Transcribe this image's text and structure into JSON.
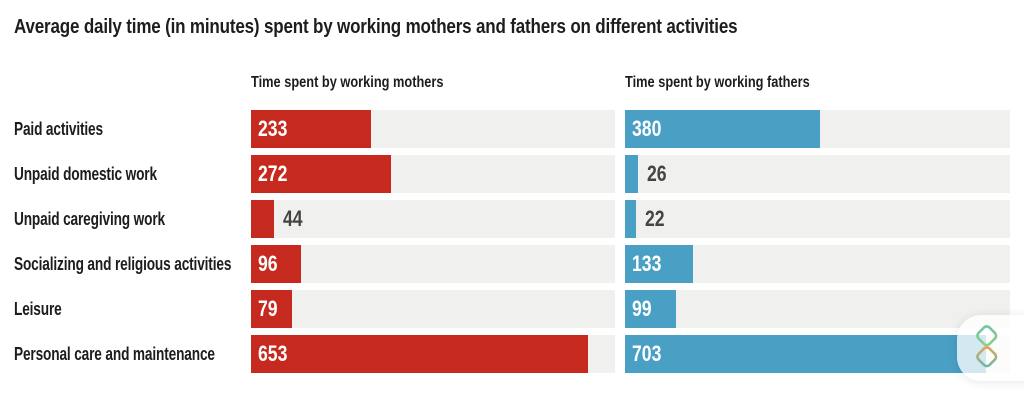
{
  "title": "Average daily time (in minutes) spent by working mothers and fathers on different activities",
  "chart_data": {
    "type": "bar",
    "orientation": "horizontal",
    "unit": "minutes per day",
    "title": "Average daily time (in minutes) spent by working mothers and fathers on different activities",
    "categories": [
      "Paid activities",
      "Unpaid domestic work",
      "Unpaid caregiving work",
      "Socializing and religious activities",
      "Leisure",
      "Personal care and maintenance"
    ],
    "series": [
      {
        "name": "Time spent by working mothers",
        "color": "#c62a1e",
        "values": [
          233,
          272,
          44,
          96,
          79,
          653
        ],
        "axis_max": 705
      },
      {
        "name": "Time spent by working fathers",
        "color": "#4a9fc4",
        "values": [
          380,
          26,
          22,
          133,
          99,
          703
        ],
        "axis_max": 750
      }
    ],
    "track_color": "#f0f0ee",
    "value_label_inside_color": "#ffffff",
    "value_label_outside_color": "#444444",
    "inside_label_min_value": 60,
    "grid": false,
    "legend_position": "column-headers-above-groups"
  },
  "overlay": {
    "widget_icon": "stacked-cubes-icon"
  }
}
